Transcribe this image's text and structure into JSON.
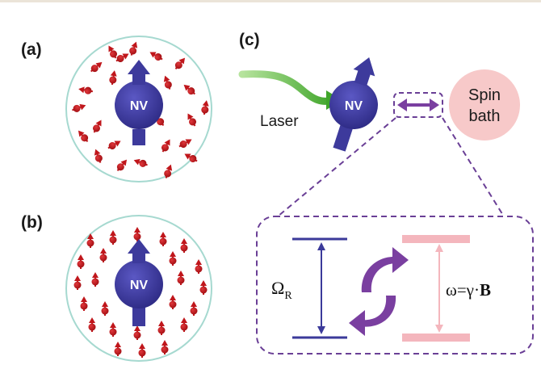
{
  "panels": {
    "a": {
      "label": "(a)",
      "center": "NV"
    },
    "b": {
      "label": "(b)",
      "center": "NV"
    },
    "c": {
      "label": "(c)",
      "center": "NV",
      "laser": "Laser",
      "spin_bath_line1": "Spin",
      "spin_bath_line2": "bath"
    }
  },
  "levels": {
    "rabi_symbol": "Ω",
    "rabi_subscript": "R",
    "larmor_prefix": "ω=γ·",
    "larmor_field": "B"
  },
  "colors": {
    "nv": "#3d3a9c",
    "spin": "#c0161b",
    "spin_bath": "#f7c9c9",
    "laser": "#5fbf3a",
    "coupling": "#7a3fa0",
    "circle_border": "#a6d9d0",
    "dashed": "#6a3f96",
    "level_blue": "#3b3a9a",
    "level_pink": "#f4b6bd"
  }
}
